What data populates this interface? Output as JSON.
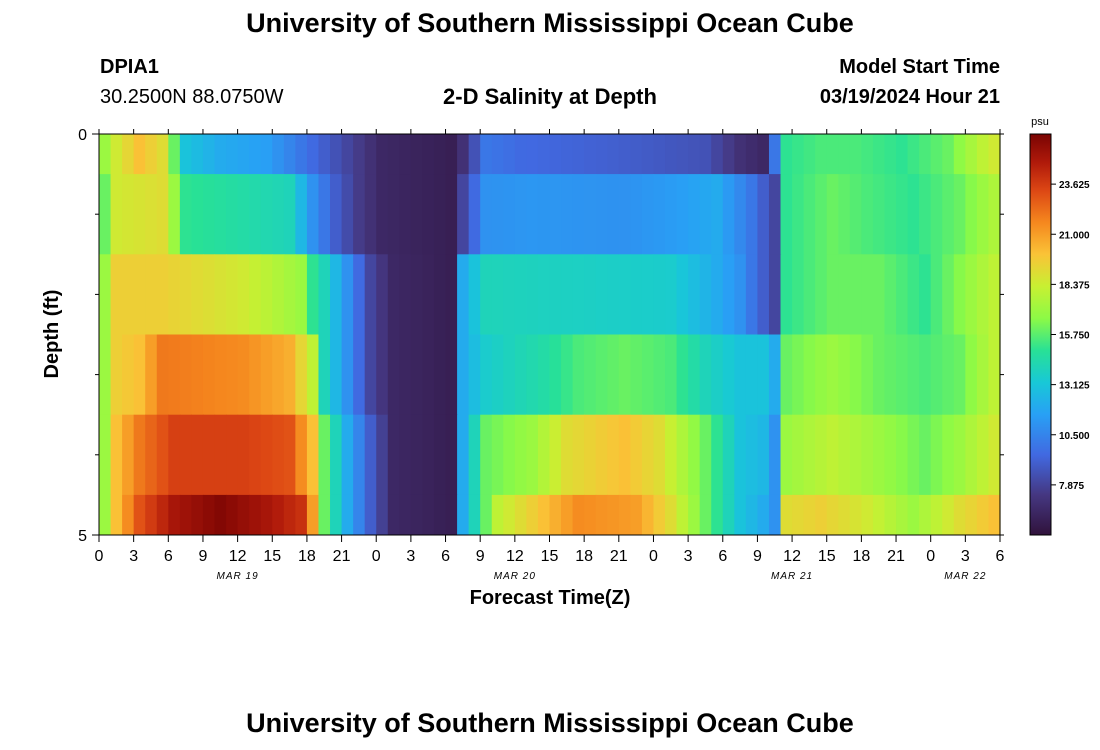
{
  "header": {
    "title": "University of Southern Mississippi Ocean Cube",
    "station_id": "DPIA1",
    "station_coords": "30.2500N  88.0750W",
    "model_start_label": "Model Start Time",
    "model_start_value": "03/19/2024 Hour 21",
    "footer_title": "University of Southern Mississippi Ocean Cube"
  },
  "chart_data": {
    "type": "heatmap",
    "title": "2-D Salinity at Depth",
    "xlabel": "Forecast Time(Z)",
    "ylabel": "Depth (ft)",
    "x_ticks": [
      "0",
      "3",
      "6",
      "9",
      "12",
      "15",
      "18",
      "21",
      "0",
      "3",
      "6",
      "9",
      "12",
      "15",
      "18",
      "21",
      "0",
      "3",
      "6",
      "9",
      "12",
      "15",
      "18",
      "21",
      "0",
      "3",
      "6"
    ],
    "day_labels": [
      {
        "label": "MAR 19",
        "tick_index": 4
      },
      {
        "label": "MAR 20",
        "tick_index": 12
      },
      {
        "label": "MAR 21",
        "tick_index": 20
      },
      {
        "label": "MAR 22",
        "tick_index": 25
      }
    ],
    "hours": 78,
    "y_ticks": [
      "0",
      "5"
    ],
    "ylim": [
      0,
      5
    ],
    "colorbar": {
      "unit": "psu",
      "min": 5.25,
      "max": 26.25,
      "tick_labels": [
        "23.625",
        "21.000",
        "18.375",
        "15.750",
        "13.125",
        "10.500",
        "7.875"
      ],
      "tick_values": [
        23.625,
        21.0,
        18.375,
        15.75,
        13.125,
        10.5,
        7.875
      ]
    },
    "rows": [
      {
        "depth_range": [
          0.0,
          0.5
        ],
        "keyframes": [
          [
            0,
            17
          ],
          [
            1,
            18.5
          ],
          [
            3,
            20
          ],
          [
            5,
            19
          ],
          [
            7,
            13
          ],
          [
            10,
            12
          ],
          [
            14,
            11.5
          ],
          [
            17,
            10
          ],
          [
            19,
            9
          ],
          [
            22,
            7.5
          ],
          [
            24,
            6.5
          ],
          [
            30,
            6
          ],
          [
            31,
            7
          ],
          [
            33,
            10
          ],
          [
            36,
            9.5
          ],
          [
            45,
            9
          ],
          [
            52,
            8.5
          ],
          [
            55,
            7
          ],
          [
            57,
            6.5
          ],
          [
            58,
            10
          ],
          [
            59,
            15
          ],
          [
            62,
            15.5
          ],
          [
            65,
            15.5
          ],
          [
            69,
            15
          ],
          [
            73,
            16
          ],
          [
            76,
            18
          ],
          [
            77,
            18.5
          ]
        ]
      },
      {
        "depth_range": [
          0.5,
          1.5
        ],
        "keyframes": [
          [
            0,
            16
          ],
          [
            1,
            18.5
          ],
          [
            5,
            19
          ],
          [
            7,
            15
          ],
          [
            12,
            14.5
          ],
          [
            16,
            14
          ],
          [
            18,
            11
          ],
          [
            20,
            9
          ],
          [
            22,
            7.5
          ],
          [
            24,
            6.5
          ],
          [
            30,
            6
          ],
          [
            31,
            8
          ],
          [
            33,
            11
          ],
          [
            37,
            11.2
          ],
          [
            45,
            11
          ],
          [
            50,
            11.5
          ],
          [
            53,
            12
          ],
          [
            56,
            10
          ],
          [
            58,
            8
          ],
          [
            59,
            15
          ],
          [
            63,
            16
          ],
          [
            66,
            15.5
          ],
          [
            70,
            15
          ],
          [
            74,
            16
          ],
          [
            77,
            17.5
          ]
        ]
      },
      {
        "depth_range": [
          1.5,
          2.5
        ],
        "keyframes": [
          [
            0,
            17
          ],
          [
            1,
            19.5
          ],
          [
            5,
            19.5
          ],
          [
            12,
            18.5
          ],
          [
            17,
            17
          ],
          [
            18,
            15
          ],
          [
            19,
            14
          ],
          [
            21,
            11
          ],
          [
            23,
            8
          ],
          [
            25,
            6.5
          ],
          [
            30,
            6
          ],
          [
            31,
            12
          ],
          [
            33,
            14
          ],
          [
            39,
            13.8
          ],
          [
            49,
            13.5
          ],
          [
            53,
            12
          ],
          [
            55,
            11
          ],
          [
            57,
            9
          ],
          [
            58,
            8
          ],
          [
            59,
            15
          ],
          [
            63,
            16
          ],
          [
            67,
            16
          ],
          [
            71,
            15
          ],
          [
            74,
            16.5
          ],
          [
            77,
            18
          ]
        ]
      },
      {
        "depth_range": [
          2.5,
          3.5
        ],
        "keyframes": [
          [
            0,
            17
          ],
          [
            1,
            19.5
          ],
          [
            3,
            20
          ],
          [
            5,
            22
          ],
          [
            12,
            21.5
          ],
          [
            16,
            20.5
          ],
          [
            18,
            18
          ],
          [
            19,
            14
          ],
          [
            21,
            11
          ],
          [
            23,
            8
          ],
          [
            25,
            6.5
          ],
          [
            30,
            6
          ],
          [
            31,
            12
          ],
          [
            33,
            13.5
          ],
          [
            38,
            14.5
          ],
          [
            41,
            15.5
          ],
          [
            45,
            16
          ],
          [
            49,
            15.5
          ],
          [
            52,
            14
          ],
          [
            55,
            13
          ],
          [
            57,
            13
          ],
          [
            58,
            12
          ],
          [
            59,
            16
          ],
          [
            63,
            17
          ],
          [
            67,
            16
          ],
          [
            71,
            15.5
          ],
          [
            74,
            16
          ],
          [
            77,
            18
          ]
        ]
      },
      {
        "depth_range": [
          3.5,
          4.5
        ],
        "keyframes": [
          [
            0,
            17
          ],
          [
            1,
            20
          ],
          [
            3,
            22
          ],
          [
            6,
            23.5
          ],
          [
            12,
            23.5
          ],
          [
            16,
            23
          ],
          [
            18,
            20
          ],
          [
            19,
            16
          ],
          [
            21,
            12
          ],
          [
            23,
            9
          ],
          [
            25,
            6.5
          ],
          [
            30,
            6
          ],
          [
            31,
            12
          ],
          [
            33,
            16
          ],
          [
            37,
            17
          ],
          [
            40,
            19
          ],
          [
            45,
            20
          ],
          [
            48,
            19
          ],
          [
            52,
            16
          ],
          [
            55,
            13
          ],
          [
            57,
            12.5
          ],
          [
            58,
            11
          ],
          [
            59,
            17
          ],
          [
            63,
            18
          ],
          [
            67,
            17
          ],
          [
            71,
            16
          ],
          [
            74,
            17
          ],
          [
            77,
            18.5
          ]
        ]
      },
      {
        "depth_range": [
          4.5,
          5.0
        ],
        "keyframes": [
          [
            0,
            17
          ],
          [
            1,
            20
          ],
          [
            3,
            23
          ],
          [
            6,
            25
          ],
          [
            10,
            26
          ],
          [
            14,
            25
          ],
          [
            17,
            24
          ],
          [
            18,
            21
          ],
          [
            19,
            16
          ],
          [
            21,
            12
          ],
          [
            23,
            9
          ],
          [
            25,
            6.5
          ],
          [
            30,
            6
          ],
          [
            31,
            12
          ],
          [
            34,
            18
          ],
          [
            38,
            20
          ],
          [
            41,
            21.5
          ],
          [
            46,
            21
          ],
          [
            49,
            19
          ],
          [
            52,
            16
          ],
          [
            55,
            13
          ],
          [
            57,
            12
          ],
          [
            58,
            11
          ],
          [
            59,
            19
          ],
          [
            62,
            19.5
          ],
          [
            66,
            18.5
          ],
          [
            70,
            17
          ],
          [
            74,
            19
          ],
          [
            77,
            20
          ]
        ]
      }
    ]
  }
}
